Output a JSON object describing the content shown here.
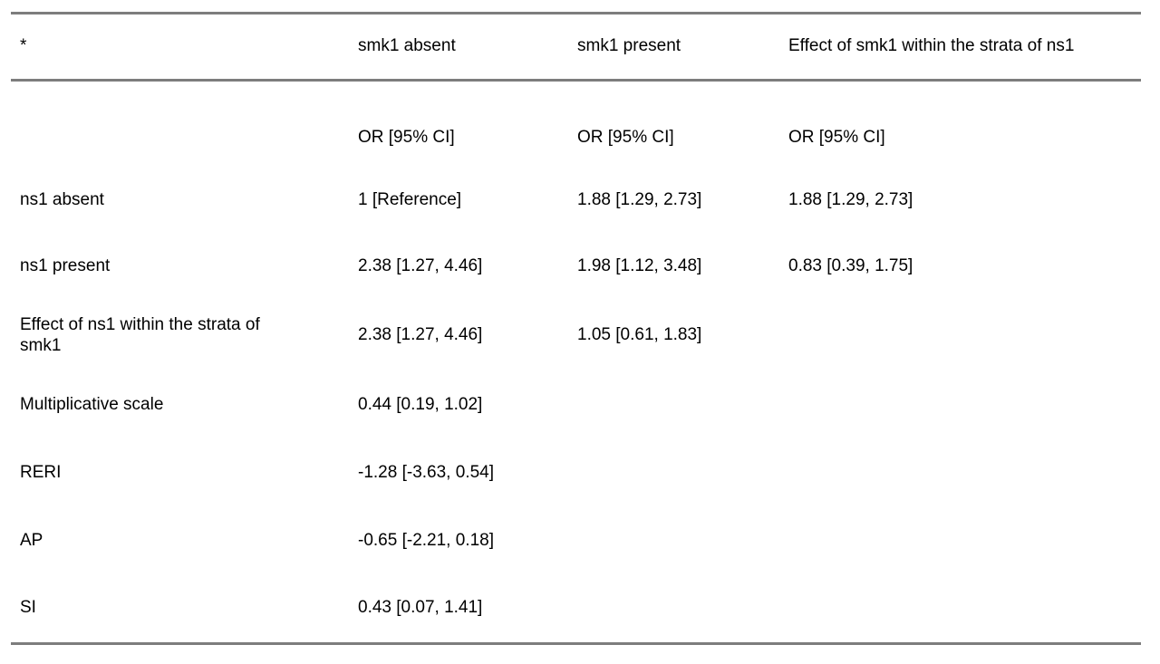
{
  "page": {
    "background": "#ffffff",
    "text_color": "#000000",
    "rule_color": "#7d7d7d"
  },
  "table": {
    "header": {
      "col0": "*",
      "col1": "smk1 absent",
      "col2": "smk1 present",
      "col3": "Effect of smk1 within the strata of ns1"
    },
    "rows": [
      {
        "label": "",
        "c1": "OR [95% CI]",
        "c2": "OR [95% CI]",
        "c3": "OR [95% CI]"
      },
      {
        "label": "ns1 absent",
        "c1": "1 [Reference]",
        "c2": "1.88 [1.29, 2.73]",
        "c3": "1.88 [1.29, 2.73]"
      },
      {
        "label": "ns1 present",
        "c1": "2.38 [1.27, 4.46]",
        "c2": "1.98 [1.12, 3.48]",
        "c3": "0.83 [0.39, 1.75]"
      },
      {
        "label": "Effect of ns1 within the strata of smk1",
        "c1": "2.38 [1.27, 4.46]",
        "c2": "1.05 [0.61, 1.83]",
        "c3": ""
      },
      {
        "label": "Multiplicative scale",
        "c1": "0.44 [0.19, 1.02]",
        "c2": "",
        "c3": ""
      },
      {
        "label": "RERI",
        "c1": "-1.28 [-3.63, 0.54]",
        "c2": "",
        "c3": ""
      },
      {
        "label": "AP",
        "c1": "-0.65 [-2.21, 0.18]",
        "c2": "",
        "c3": ""
      },
      {
        "label": "SI",
        "c1": "0.43 [0.07, 1.41]",
        "c2": "",
        "c3": ""
      }
    ]
  }
}
